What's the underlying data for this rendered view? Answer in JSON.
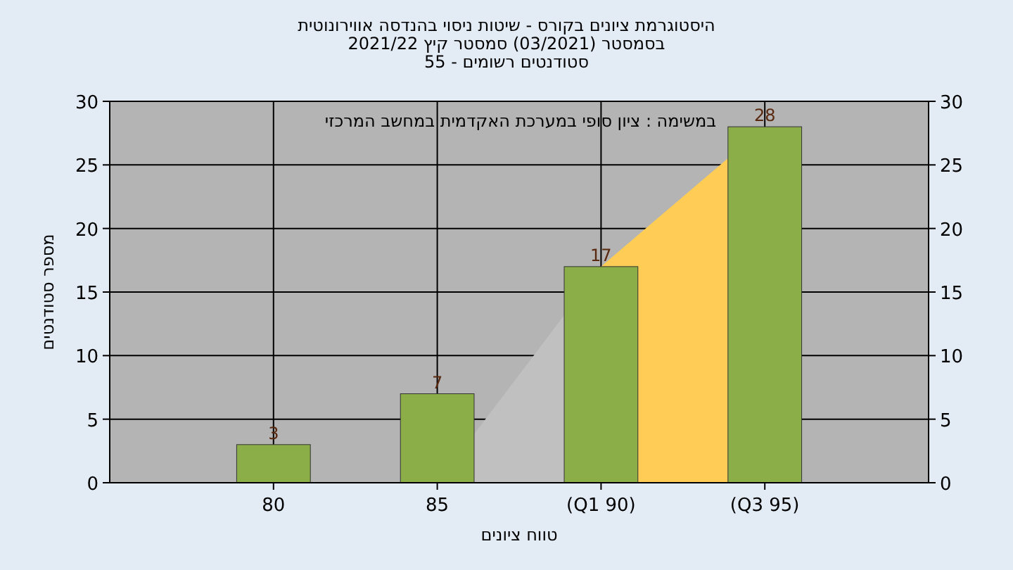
{
  "chart_data": {
    "type": "bar",
    "title": "היסטוגרמת ציונים בקורס - שיטות ניסוי בהנדסה אווירונוטית\nבסמסטר  (03/2021)  סמסטר קיץ 2021/22\nסטודנטים רשומים - 55",
    "xlabel": "טווח ציונים",
    "ylabel": "מספר סטודנטים",
    "annotations": [
      "במשימה : ציון סופי במערכת האקדמית במחשב המרכזי"
    ],
    "categories": [
      "80",
      "85",
      "(Q1 90)",
      "(Q3 95)"
    ],
    "series": [
      {
        "type": "area",
        "color": "#c0c0c0",
        "values": [
          null,
          0,
          17,
          null
        ]
      },
      {
        "type": "area",
        "color": "#ffcc55",
        "values": [
          null,
          null,
          17,
          28
        ]
      },
      {
        "color": "#8cae48",
        "values": [
          3,
          7,
          17,
          28
        ],
        "value_labels": [
          "3",
          "7",
          "17",
          "28"
        ]
      }
    ],
    "ylim": [
      0,
      30
    ],
    "yticks": [
      0,
      5,
      10,
      15,
      20,
      25,
      30
    ],
    "y2lim": [
      0,
      30
    ],
    "y2ticks": [
      0,
      5,
      10,
      15,
      20,
      25,
      30
    ],
    "grid": true
  }
}
